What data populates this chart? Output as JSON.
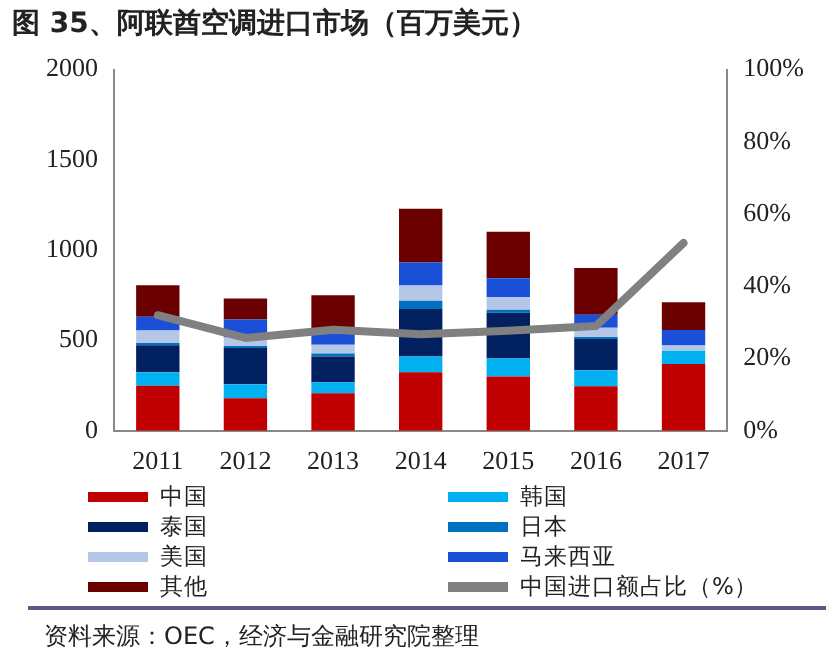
{
  "chart_data": {
    "type": "bar",
    "title": "图 35、阿联酋空调进口市场（百万美元）",
    "stacked": true,
    "grid": false,
    "legend": "bottom",
    "marker": "none",
    "categories": [
      "2011",
      "2012",
      "2013",
      "2014",
      "2015",
      "2016",
      "2017"
    ],
    "series": [
      {
        "name": "中国",
        "color": "#c00000",
        "values": [
          250,
          180,
          208,
          324,
          300,
          246,
          370
        ]
      },
      {
        "name": "韩国",
        "color": "#00b0f0",
        "values": [
          74,
          78,
          61,
          88,
          100,
          89,
          73
        ]
      },
      {
        "name": "泰国",
        "color": "#002060",
        "values": [
          150,
          200,
          143,
          262,
          254,
          174,
          null
        ]
      },
      {
        "name": "日本",
        "color": "#0070c0",
        "values": [
          12,
          11,
          16,
          46,
          16,
          11,
          null
        ]
      },
      {
        "name": "美国",
        "color": "#b4c7e7",
        "values": [
          70,
          47,
          49,
          85,
          70,
          50,
          30
        ]
      },
      {
        "name": "马来西亚",
        "color": "#1a4fd8",
        "values": [
          76,
          100,
          70,
          127,
          104,
          73,
          85
        ]
      },
      {
        "name": "其他",
        "color": "#6b0000",
        "values": [
          174,
          116,
          204,
          297,
          258,
          259,
          154
        ]
      },
      {
        "name": "中国进口额占比（%）",
        "type": "line",
        "axis": "y2",
        "color": "#808080",
        "values": [
          32,
          25.7,
          28,
          26.7,
          27.7,
          29,
          52
        ]
      }
    ],
    "ylim": [
      0,
      2000
    ],
    "yticks": [
      0,
      500,
      1000,
      1500,
      2000
    ],
    "y2lim": [
      0,
      100
    ],
    "y2ticks": [
      {
        "value": 0,
        "label": "0%"
      },
      {
        "value": 20,
        "label": "20%"
      },
      {
        "value": 40,
        "label": "40%"
      },
      {
        "value": 60,
        "label": "60%"
      },
      {
        "value": 80,
        "label": "80%"
      },
      {
        "value": 100,
        "label": "100%"
      }
    ],
    "annotations": [
      "资料来源：OEC，经济与金融研究院整理"
    ]
  }
}
